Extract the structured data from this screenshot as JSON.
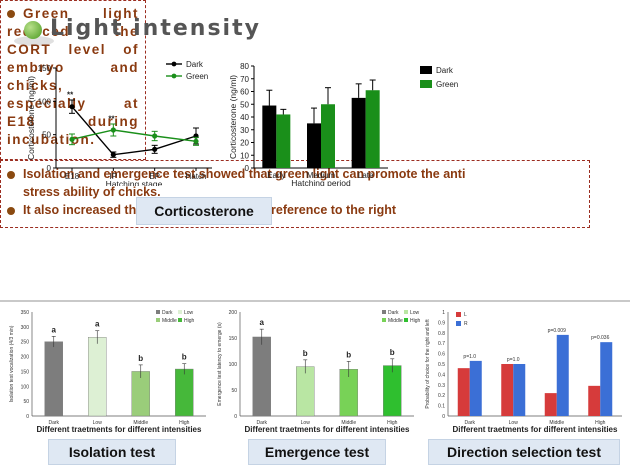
{
  "title": "Light intensity",
  "top_text": {
    "bullet_box": "Green light reduced the CORT level of embryo and chicks, especially at E18 during incubation.",
    "isolation_lines": [
      "Isolation and emergence test showed that green light can promote the anti",
      "stress ability of chicks.",
      "It also increased the chicken directional  preference to the right"
    ]
  },
  "labels": {
    "corticosterone": "Corticosterone",
    "isolation": "Isolation test",
    "emergence": "Emergence test",
    "direction": "Direction selection test"
  },
  "colors": {
    "dark": "#000000",
    "green": "#1a8f1a",
    "bar_gray": "#7d7d7d",
    "red": "#d63b3b",
    "blue": "#3b6fd6"
  },
  "chart_data": [
    {
      "type": "line",
      "ylabel": "Corticosterone (ng/ml)",
      "xlabel": "Hatching stage",
      "categories": [
        "E18",
        "IP",
        "EP",
        "Hatch"
      ],
      "ylim": [
        0,
        150
      ],
      "yticks": [
        0,
        50,
        100,
        150
      ],
      "series": [
        {
          "name": "Dark",
          "values": [
            92,
            20,
            28,
            48
          ],
          "errors": [
            10,
            4,
            6,
            12
          ]
        },
        {
          "name": "Green",
          "values": [
            43,
            57,
            48,
            40
          ],
          "errors": [
            8,
            9,
            7,
            6
          ]
        }
      ],
      "annotations": [
        "**",
        "**"
      ]
    },
    {
      "type": "bar",
      "ylabel": "Corticosterone (ng/ml)",
      "xlabel": "Hatching period",
      "categories": [
        "Early",
        "Medium",
        "Late"
      ],
      "ylim": [
        0,
        80
      ],
      "yticks": [
        0,
        10,
        20,
        30,
        40,
        50,
        60,
        70,
        80
      ],
      "series": [
        {
          "name": "Dark",
          "values": [
            49,
            35,
            55
          ],
          "errors": [
            12,
            12,
            11
          ]
        },
        {
          "name": "Green",
          "values": [
            42,
            50,
            61
          ],
          "errors": [
            4,
            13,
            8
          ]
        }
      ]
    },
    {
      "type": "bar",
      "ylabel": "Isolation test vocalization (4/3 min)",
      "xlabel": "Different  traetments for different intensities",
      "categories": [
        "Dark",
        "Low",
        "Middle",
        "High"
      ],
      "ylim": [
        0,
        350
      ],
      "yticks": [
        0,
        50,
        100,
        150,
        200,
        250,
        300,
        350
      ],
      "values": [
        250,
        265,
        150,
        158
      ],
      "errors": [
        18,
        22,
        22,
        18
      ],
      "letters": [
        "a",
        "a",
        "b",
        "b"
      ],
      "legend": [
        "Dark",
        "Low",
        "Middle",
        "High"
      ]
    },
    {
      "type": "bar",
      "ylabel": "Emergence test latency to emerge (s)",
      "xlabel": "Different  traetments for different intensities",
      "categories": [
        "Dark",
        "Low",
        "Middle",
        "High"
      ],
      "ylim": [
        0,
        200
      ],
      "yticks": [
        0,
        50,
        100,
        150,
        200
      ],
      "values": [
        152,
        95,
        90,
        97
      ],
      "errors": [
        15,
        13,
        15,
        13
      ],
      "letters": [
        "a",
        "b",
        "b",
        "b"
      ],
      "legend": [
        "Dark",
        "Low",
        "Middle",
        "High"
      ]
    },
    {
      "type": "bar",
      "ylabel": "Probability of choice for the right and left",
      "xlabel": "Different  traetments for different intensities",
      "categories": [
        "Dark",
        "Low",
        "Middle",
        "High"
      ],
      "ylim": [
        0,
        1
      ],
      "yticks": [
        0,
        0.1,
        0.2,
        0.3,
        0.4,
        0.5,
        0.6,
        0.7,
        0.8,
        0.9,
        1
      ],
      "series": [
        {
          "name": "L",
          "values": [
            0.46,
            0.5,
            0.22,
            0.29
          ]
        },
        {
          "name": "R",
          "values": [
            0.53,
            0.5,
            0.78,
            0.71
          ]
        }
      ],
      "pvalues": [
        "p=1.0",
        "p=1.0",
        "p=0.009",
        "p=0.036"
      ]
    }
  ]
}
